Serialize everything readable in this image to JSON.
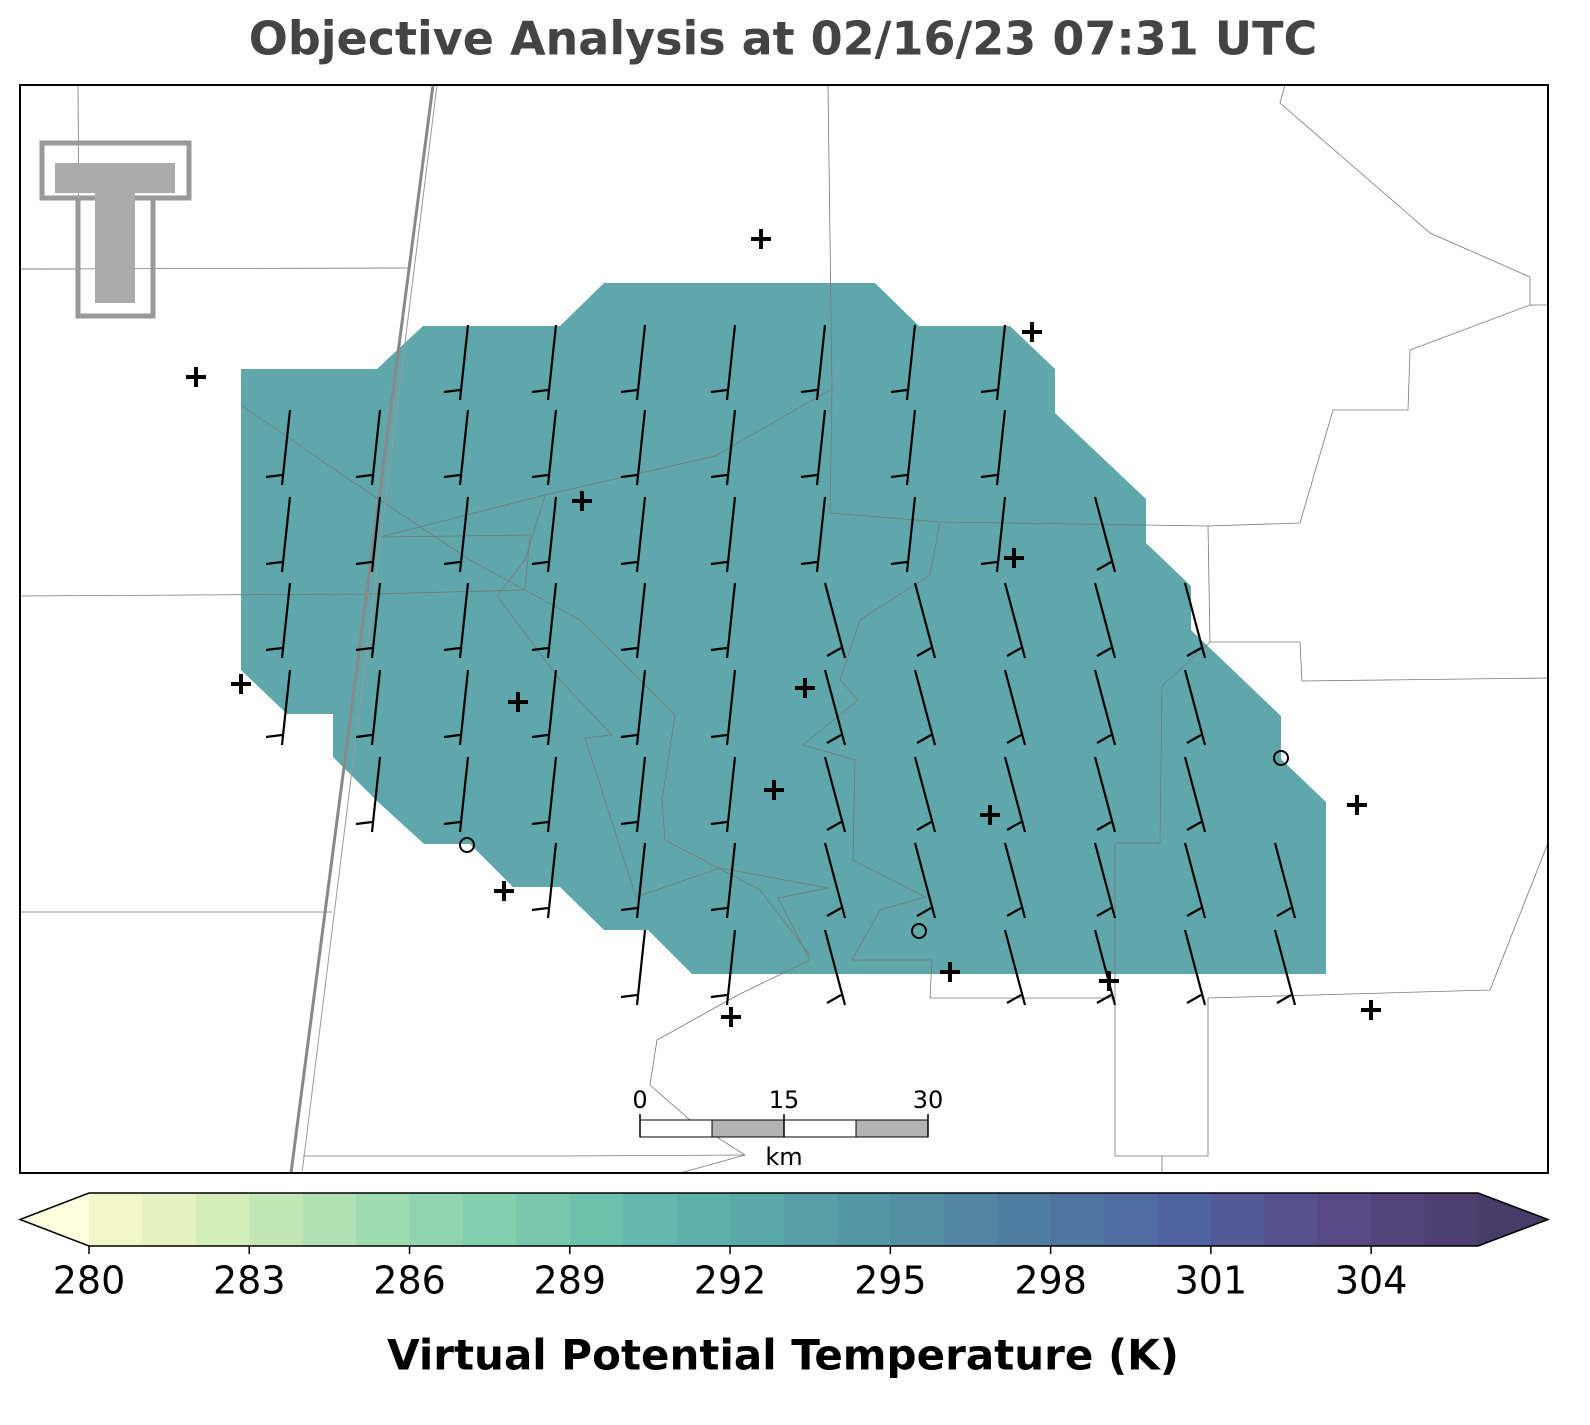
{
  "chart_data": {
    "type": "colorbar",
    "title": "Objective Analysis at 02/16/23 07:31 UTC",
    "colorbar": {
      "label": "Virtual Potential Temperature (K)",
      "lim": [
        280,
        306
      ],
      "ticks": [
        280,
        283,
        286,
        289,
        292,
        295,
        298,
        301,
        304
      ],
      "colormap": [
        "#fafacb",
        "#cdebb6",
        "#98d9ae",
        "#74c6ac",
        "#5db0aa",
        "#5697a6",
        "#4f7ea1",
        "#4e66a0",
        "#5a4a8a",
        "#4b3d6b"
      ],
      "under_color": "#ffffe0",
      "over_color": "#463c68"
    },
    "scale_bar": {
      "lim": [
        0,
        30
      ],
      "ticks": [
        0,
        15,
        30
      ],
      "unit": "km"
    }
  }
}
